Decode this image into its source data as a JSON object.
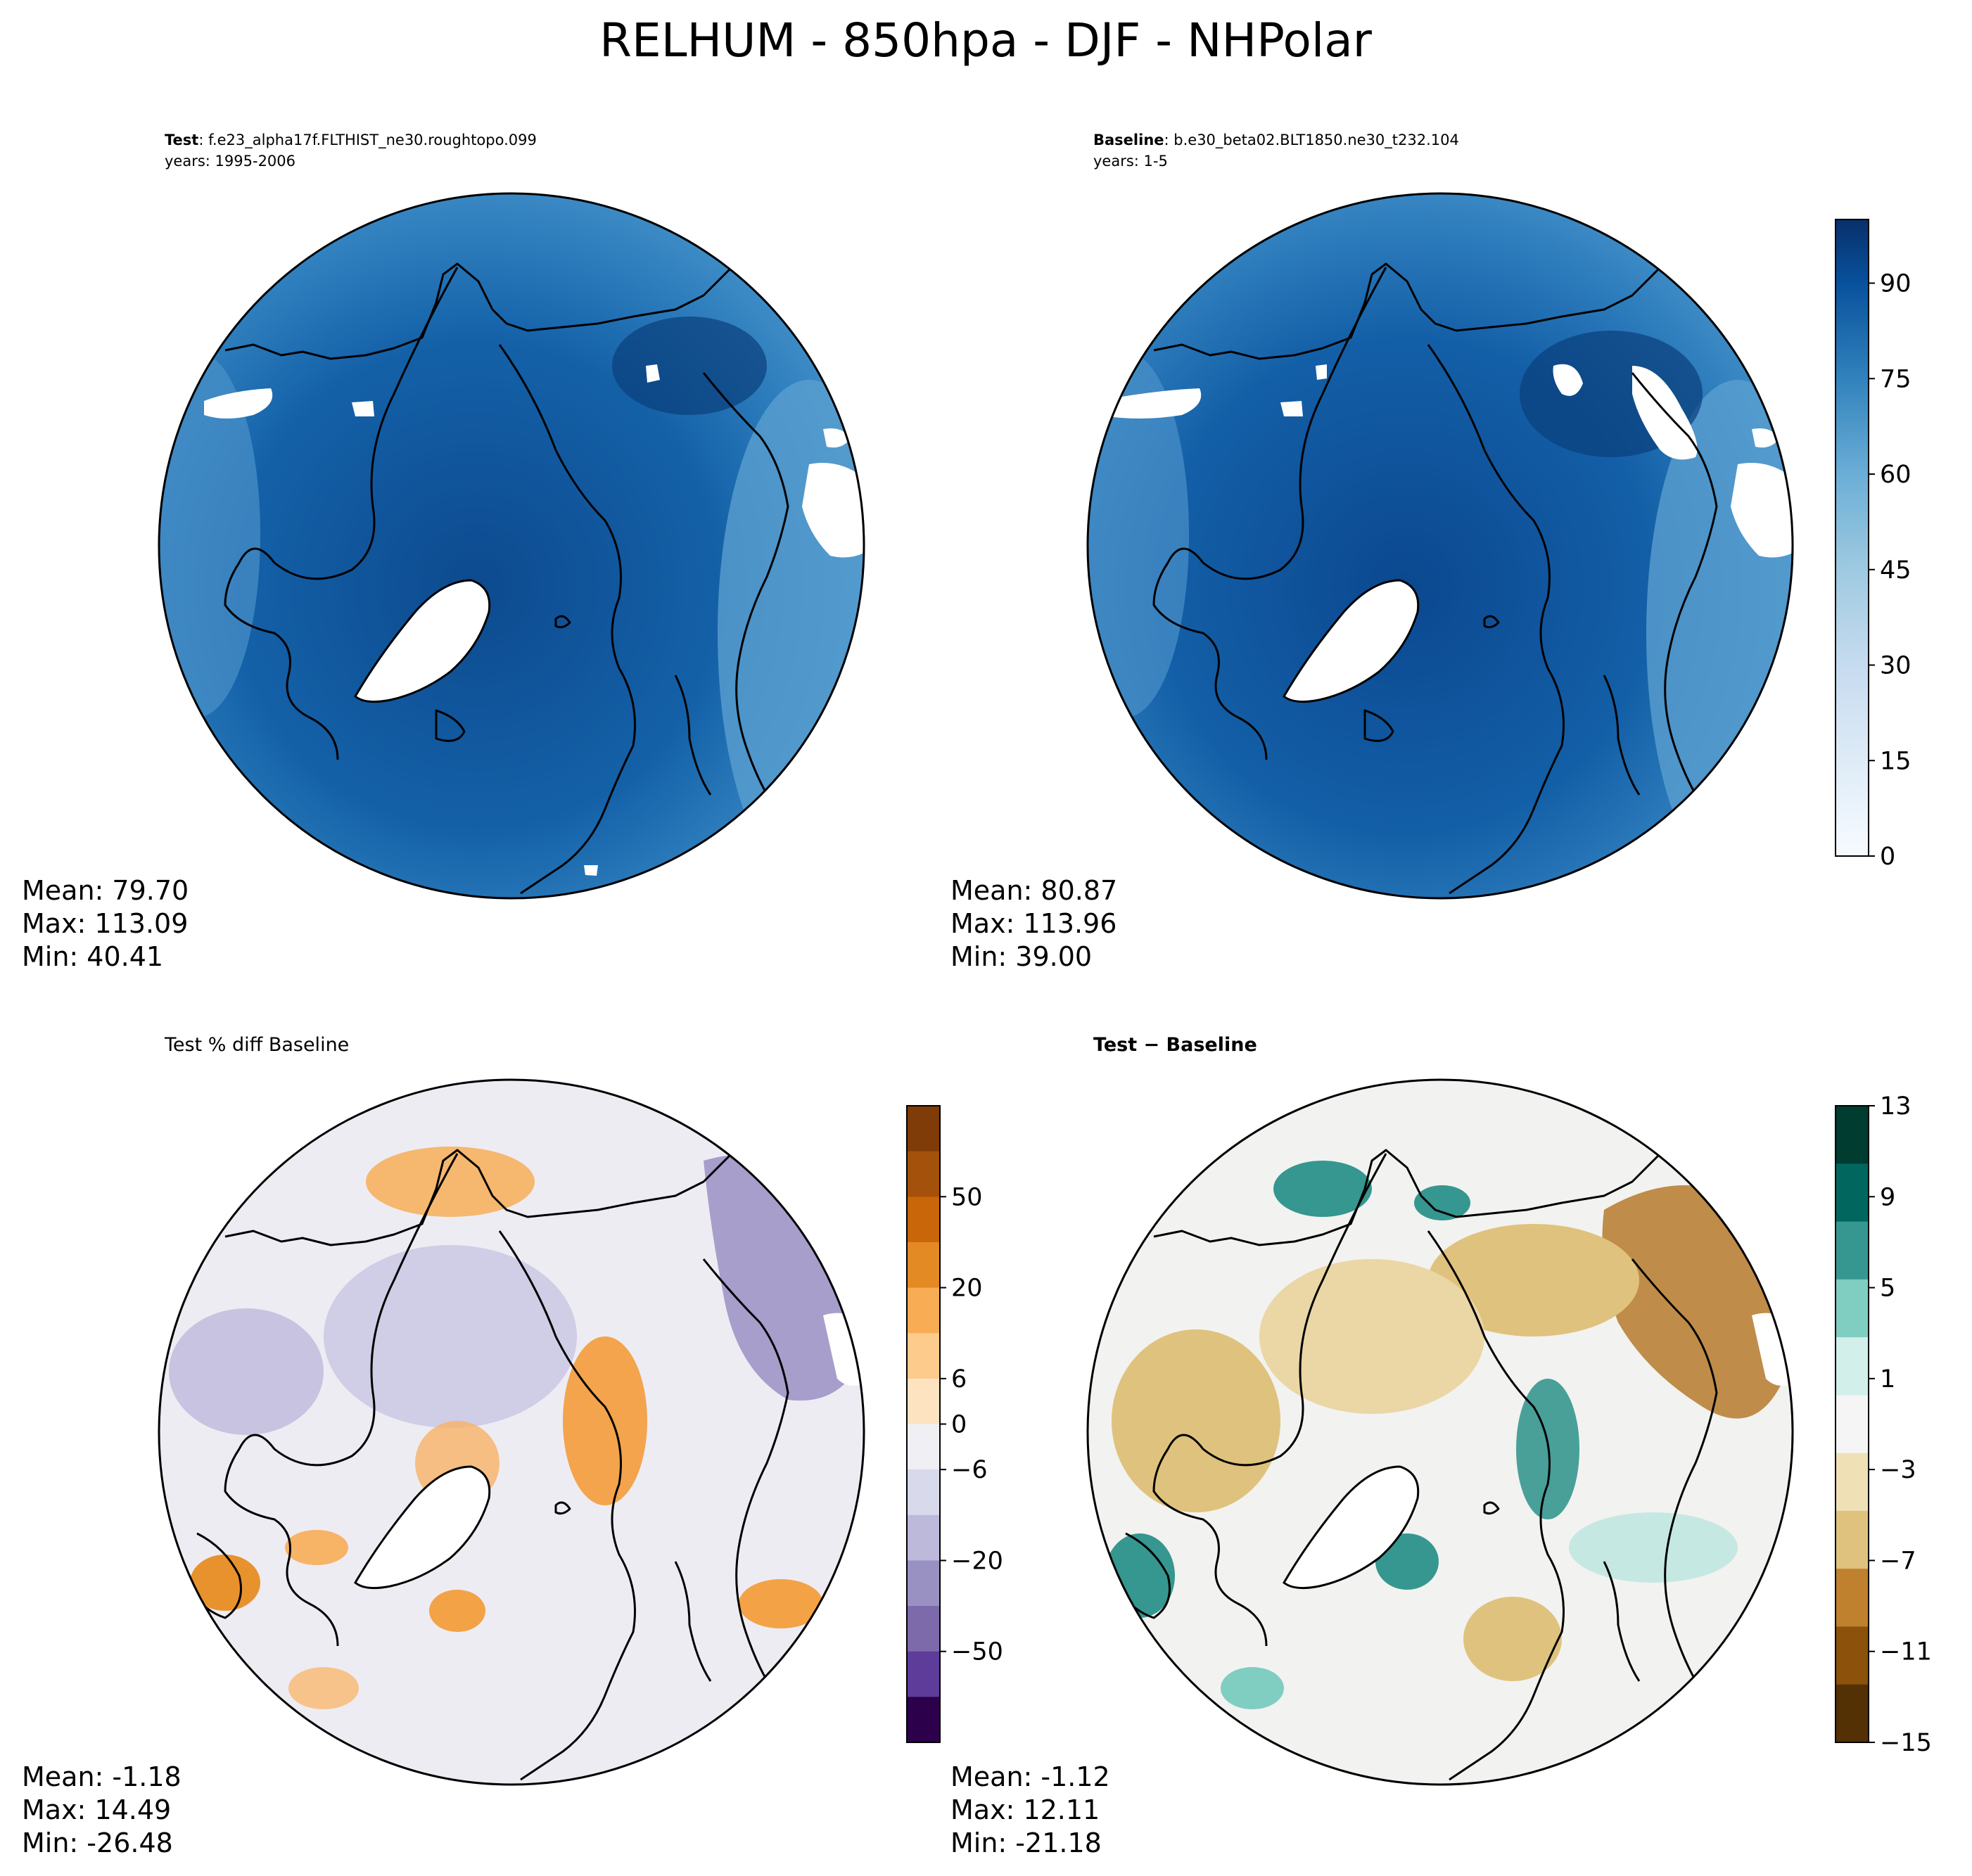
{
  "figure": {
    "title": "RELHUM - 850hpa - DJF - NHPolar"
  },
  "colors": {
    "blues": [
      "#f7fbff",
      "#e5eff9",
      "#d6e6f4",
      "#c4dbee",
      "#abd0e6",
      "#8dc0de",
      "#6aaed6",
      "#4f9bcb",
      "#3787c0",
      "#2171b5",
      "#1160a6",
      "#08509b",
      "#083f80",
      "#08306b"
    ],
    "puor": [
      "#7f3b08",
      "#a4510b",
      "#c86609",
      "#e38a24",
      "#f8ad54",
      "#fdcb8b",
      "#fee3c0",
      "#efeff4",
      "#d8d9ea",
      "#bcb9db",
      "#9a91c3",
      "#7d6aab",
      "#5e3c99",
      "#2d004b"
    ],
    "brbg": [
      "#543005",
      "#8c510a",
      "#bf812d",
      "#dfc27d",
      "#f0e0b6",
      "#f5f5f5",
      "#d2efea",
      "#80cdc1",
      "#35978f",
      "#01665e",
      "#003c30"
    ],
    "ocean_white": "#ffffff",
    "coastline": "#000000"
  },
  "panels": [
    {
      "id": "test",
      "title_bold": "Test",
      "title_rest": ": f.e23_alpha17f.FLTHIST_ne30.roughtopo.099",
      "subtitle": "years: 1995-2006",
      "stats": {
        "mean": "Mean: 79.70",
        "max": "Max: 113.09",
        "min": "Min: 40.41"
      }
    },
    {
      "id": "baseline",
      "title_bold": "Baseline",
      "title_rest": ": b.e30_beta02.BLT1850.ne30_t232.104",
      "subtitle": "years: 1-5",
      "stats": {
        "mean": "Mean: 80.87",
        "max": "Max: 113.96",
        "min": "Min: 39.00"
      }
    },
    {
      "id": "pctdiff",
      "title_plain": "Test % diff Baseline",
      "stats": {
        "mean": "Mean: -1.18",
        "max": "Max: 14.49",
        "min": "Min: -26.48"
      }
    },
    {
      "id": "diff",
      "title_bold": "Test − Baseline",
      "stats": {
        "mean": "Mean: -1.12",
        "max": "Max: 12.11",
        "min": "Min: -21.18"
      }
    }
  ],
  "colorbars": {
    "main": {
      "ticks": [
        "90",
        "75",
        "60",
        "45",
        "30",
        "15",
        "0"
      ]
    },
    "pct": {
      "ticks": [
        "50",
        "20",
        "6",
        "0",
        "−6",
        "−20",
        "−50"
      ]
    },
    "diff": {
      "ticks": [
        "13",
        "9",
        "5",
        "1",
        "−3",
        "−7",
        "−11",
        "−15"
      ]
    }
  },
  "chart_data": [
    {
      "type": "heatmap",
      "projection": "north polar stereographic",
      "panel": "Test",
      "variable": "RELHUM",
      "level": "850hpa",
      "season": "DJF",
      "stats": {
        "mean": 79.7,
        "max": 113.09,
        "min": 40.41
      },
      "colorbar_range": [
        0,
        100
      ],
      "colorbar_ticks": [
        0,
        15,
        30,
        45,
        60,
        75,
        90
      ]
    },
    {
      "type": "heatmap",
      "projection": "north polar stereographic",
      "panel": "Baseline",
      "stats": {
        "mean": 80.87,
        "max": 113.96,
        "min": 39.0
      },
      "colorbar_range": [
        0,
        100
      ],
      "colorbar_ticks": [
        0,
        15,
        30,
        45,
        60,
        75,
        90
      ]
    },
    {
      "type": "heatmap",
      "projection": "north polar stereographic",
      "panel": "Test % diff Baseline",
      "stats": {
        "mean": -1.18,
        "max": 14.49,
        "min": -26.48
      },
      "colorbar_ticks": [
        -50,
        -20,
        -6,
        0,
        6,
        20,
        50
      ]
    },
    {
      "type": "heatmap",
      "projection": "north polar stereographic",
      "panel": "Test − Baseline",
      "stats": {
        "mean": -1.12,
        "max": 12.11,
        "min": -21.18
      },
      "colorbar_range": [
        -15,
        13
      ],
      "colorbar_ticks": [
        -15,
        -11,
        -7,
        -3,
        1,
        5,
        9,
        13
      ]
    }
  ]
}
